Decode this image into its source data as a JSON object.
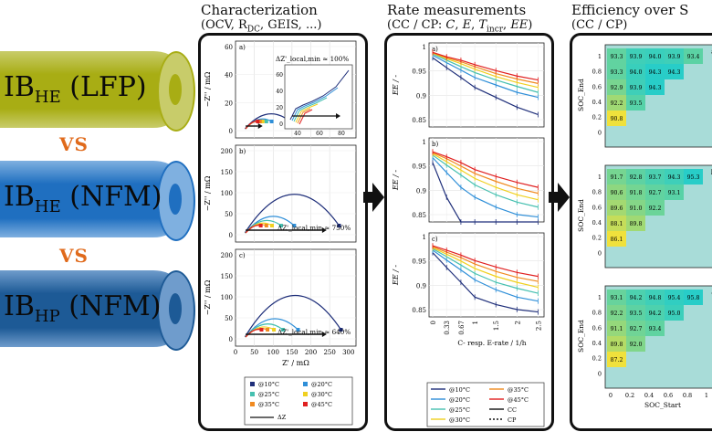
{
  "cells": [
    {
      "main": "IB",
      "sub": "HE",
      "chem": "(LFP)",
      "color": "#a8ad14",
      "cap": "#c8cc6a"
    },
    {
      "main": "IB",
      "sub": "HE",
      "chem": "(NFM)",
      "color": "#1f6fc0",
      "cap": "#7fb0e0"
    },
    {
      "main": "IB",
      "sub": "HP",
      "chem": "(NFM)",
      "color": "#1d5a96",
      "cap": "#6f9ccc"
    }
  ],
  "vs_label": "VS",
  "sections": {
    "char": {
      "title": "Characterization",
      "subtitle": "(OCV, R_DC, GEIS, ...)"
    },
    "rate": {
      "title": "Rate measurements",
      "subtitle": "(CC / CP: C, E, T_incr, EE)"
    },
    "eff": {
      "title": "Efficiency over S",
      "subtitle": "(CC / CP)"
    }
  },
  "char_panels": [
    {
      "tag": "a)",
      "annot": "ΔZ'_local,min ≈ 100%",
      "yticks": [
        "60",
        "40",
        "20",
        "0"
      ]
    },
    {
      "tag": "b)",
      "annot": "ΔZ'_local,min ≈ 750%",
      "yticks": [
        "200",
        "150",
        "100",
        "50",
        "0"
      ]
    },
    {
      "tag": "c)",
      "annot": "ΔZ'_local,min ≈ 640%",
      "yticks": [
        "200",
        "150",
        "100",
        "50",
        "0"
      ]
    }
  ],
  "char_axis": {
    "ylabel": "−Z'' / mΩ",
    "xlabel": "Z' / mΩ",
    "xticks": [
      "0",
      "50",
      "100",
      "150",
      "200",
      "250",
      "300"
    ]
  },
  "char_inset": {
    "xticks": [
      "40",
      "60",
      "80"
    ],
    "yticks": [
      "0",
      "20",
      "40",
      "60"
    ]
  },
  "char_legend": [
    "@10°C",
    "@20°C",
    "@25°C",
    "@30°C",
    "@35°C",
    "@45°C",
    "ΔZ"
  ],
  "rate_panels": [
    {
      "tag": "a)"
    },
    {
      "tag": "b)"
    },
    {
      "tag": "c)"
    }
  ],
  "rate_axis": {
    "ylabel": "EE / -",
    "yticks": [
      "1",
      "0.95",
      "0.9",
      "0.85"
    ],
    "xticks": [
      "0",
      "0.33",
      "0.67",
      "1",
      "1.5",
      "2",
      "2.5"
    ],
    "xlabel": "C- resp. E-rate / 1/h"
  },
  "rate_legend": [
    "@10°C",
    "@35°C",
    "@20°C",
    "@45°C",
    "@25°C",
    "CC",
    "@30°C",
    "CP"
  ],
  "eff_panels": [
    {
      "tag": "a)",
      "rows": [
        [
          "93.3",
          "93.9",
          "94.0",
          "93.9",
          "93.4"
        ],
        [
          "93.3",
          "94.0",
          "94.3",
          "94.3"
        ],
        [
          "92.9",
          "93.9",
          "94.3"
        ],
        [
          "92.2",
          "93.5"
        ],
        [
          "90.8"
        ]
      ]
    },
    {
      "tag": "b)",
      "rows": [
        [
          "91.7",
          "92.8",
          "93.7",
          "94.3",
          "95.3"
        ],
        [
          "90.6",
          "91.8",
          "92.7",
          "93.1"
        ],
        [
          "89.6",
          "91.0",
          "92.2"
        ],
        [
          "88.1",
          "89.8"
        ],
        [
          "86.1"
        ]
      ]
    },
    {
      "tag": "c)",
      "rows": [
        [
          "93.1",
          "94.2",
          "94.8",
          "95.4",
          "95.8"
        ],
        [
          "92.2",
          "93.5",
          "94.2",
          "95.0"
        ],
        [
          "91.1",
          "92.7",
          "93.4"
        ],
        [
          "89.8",
          "92.0"
        ],
        [
          "87.2"
        ]
      ]
    }
  ],
  "eff_axis": {
    "ylabel": "SOC_End",
    "xlabel": "SOC_Start",
    "yticks": [
      "1",
      "0.8",
      "0.6",
      "0.4",
      "0.2",
      "0"
    ],
    "xticks": [
      "0",
      "0.2",
      "0.4",
      "0.6",
      "0.8",
      "1"
    ]
  },
  "colors": {
    "c10": "#1f2f7a",
    "c20": "#2f8fd8",
    "c25": "#46c0b0",
    "c30": "#f0d020",
    "c35": "#f08a20",
    "c45": "#e02020",
    "cc": "#111111"
  }
}
